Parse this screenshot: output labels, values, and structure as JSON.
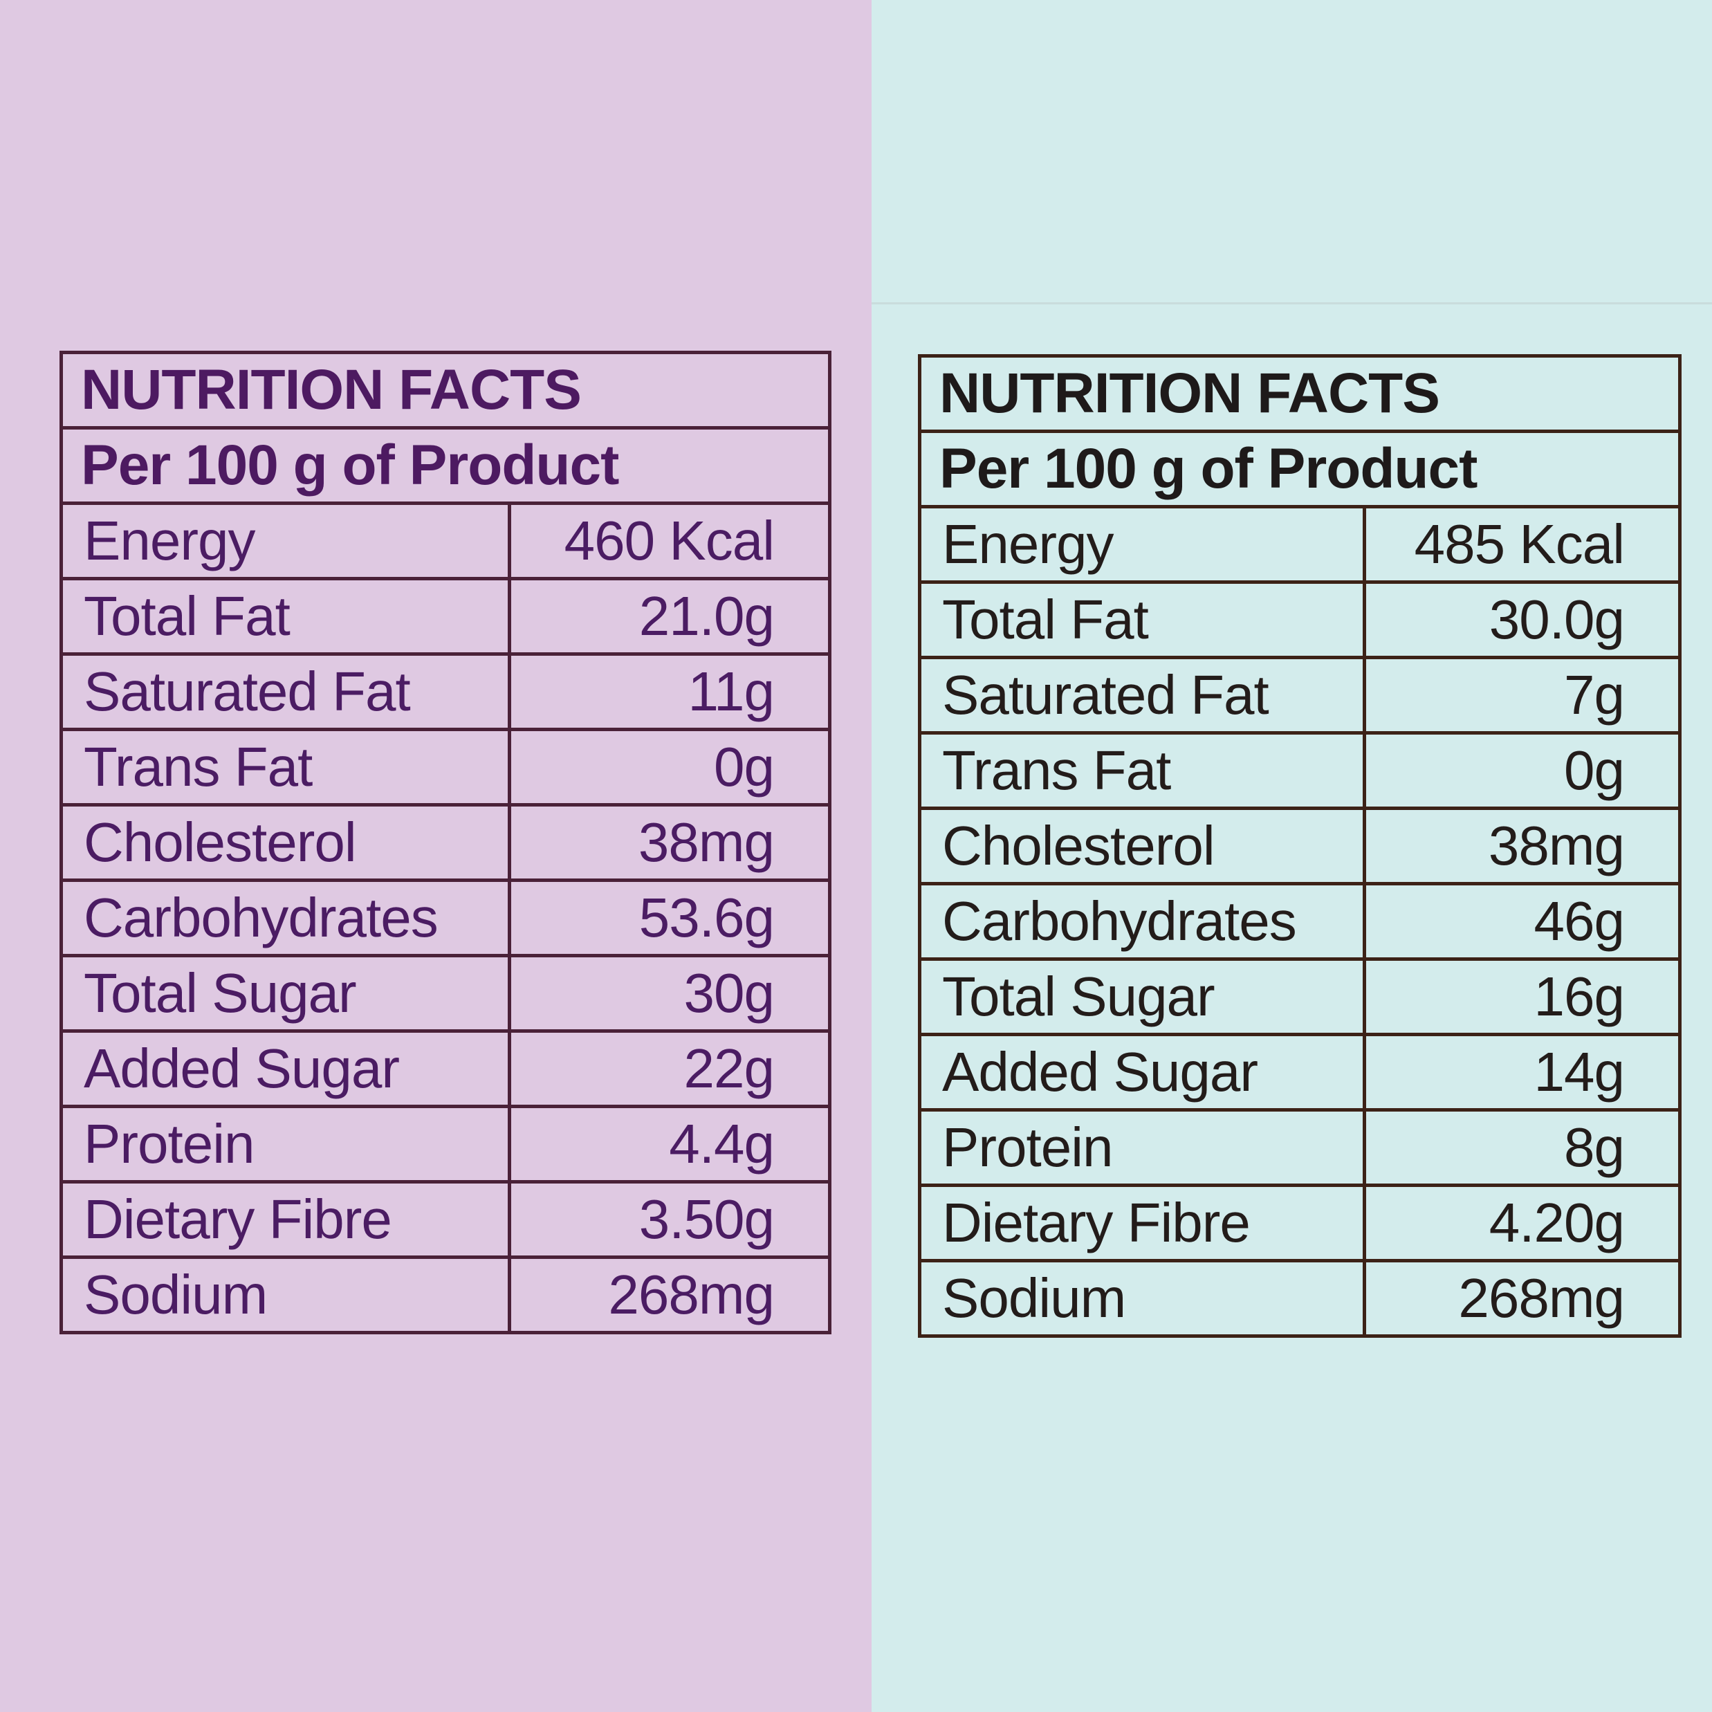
{
  "left_table": {
    "title": "NUTRITION FACTS",
    "subtitle": "Per 100 g of Product",
    "rows": [
      {
        "label": "Energy",
        "value": "460 Kcal"
      },
      {
        "label": "Total Fat",
        "value": "21.0g"
      },
      {
        "label": "Saturated Fat",
        "value": "11g"
      },
      {
        "label": "Trans Fat",
        "value": "0g"
      },
      {
        "label": "Cholesterol",
        "value": "38mg"
      },
      {
        "label": "Carbohydrates",
        "value": "53.6g"
      },
      {
        "label": "Total Sugar",
        "value": "30g"
      },
      {
        "label": "Added Sugar",
        "value": "22g"
      },
      {
        "label": "Protein",
        "value": "4.4g"
      },
      {
        "label": "Dietary Fibre",
        "value": "3.50g"
      },
      {
        "label": "Sodium",
        "value": "268mg"
      }
    ]
  },
  "right_table": {
    "title": "NUTRITION FACTS",
    "subtitle": "Per 100 g of Product",
    "rows": [
      {
        "label": "Energy",
        "value": "485 Kcal"
      },
      {
        "label": "Total Fat",
        "value": "30.0g"
      },
      {
        "label": "Saturated Fat",
        "value": "7g"
      },
      {
        "label": "Trans Fat",
        "value": "0g"
      },
      {
        "label": "Cholesterol",
        "value": "38mg"
      },
      {
        "label": "Carbohydrates",
        "value": "46g"
      },
      {
        "label": "Total Sugar",
        "value": "16g"
      },
      {
        "label": "Added Sugar",
        "value": "14g"
      },
      {
        "label": "Protein",
        "value": "8g"
      },
      {
        "label": "Dietary Fibre",
        "value": "4.20g"
      },
      {
        "label": "Sodium",
        "value": "268mg"
      }
    ]
  },
  "colors": {
    "left_background": "#dfc9e2",
    "right_background": "#d3ecec",
    "left_text": "#4b1c63",
    "right_text": "#231c1a"
  }
}
